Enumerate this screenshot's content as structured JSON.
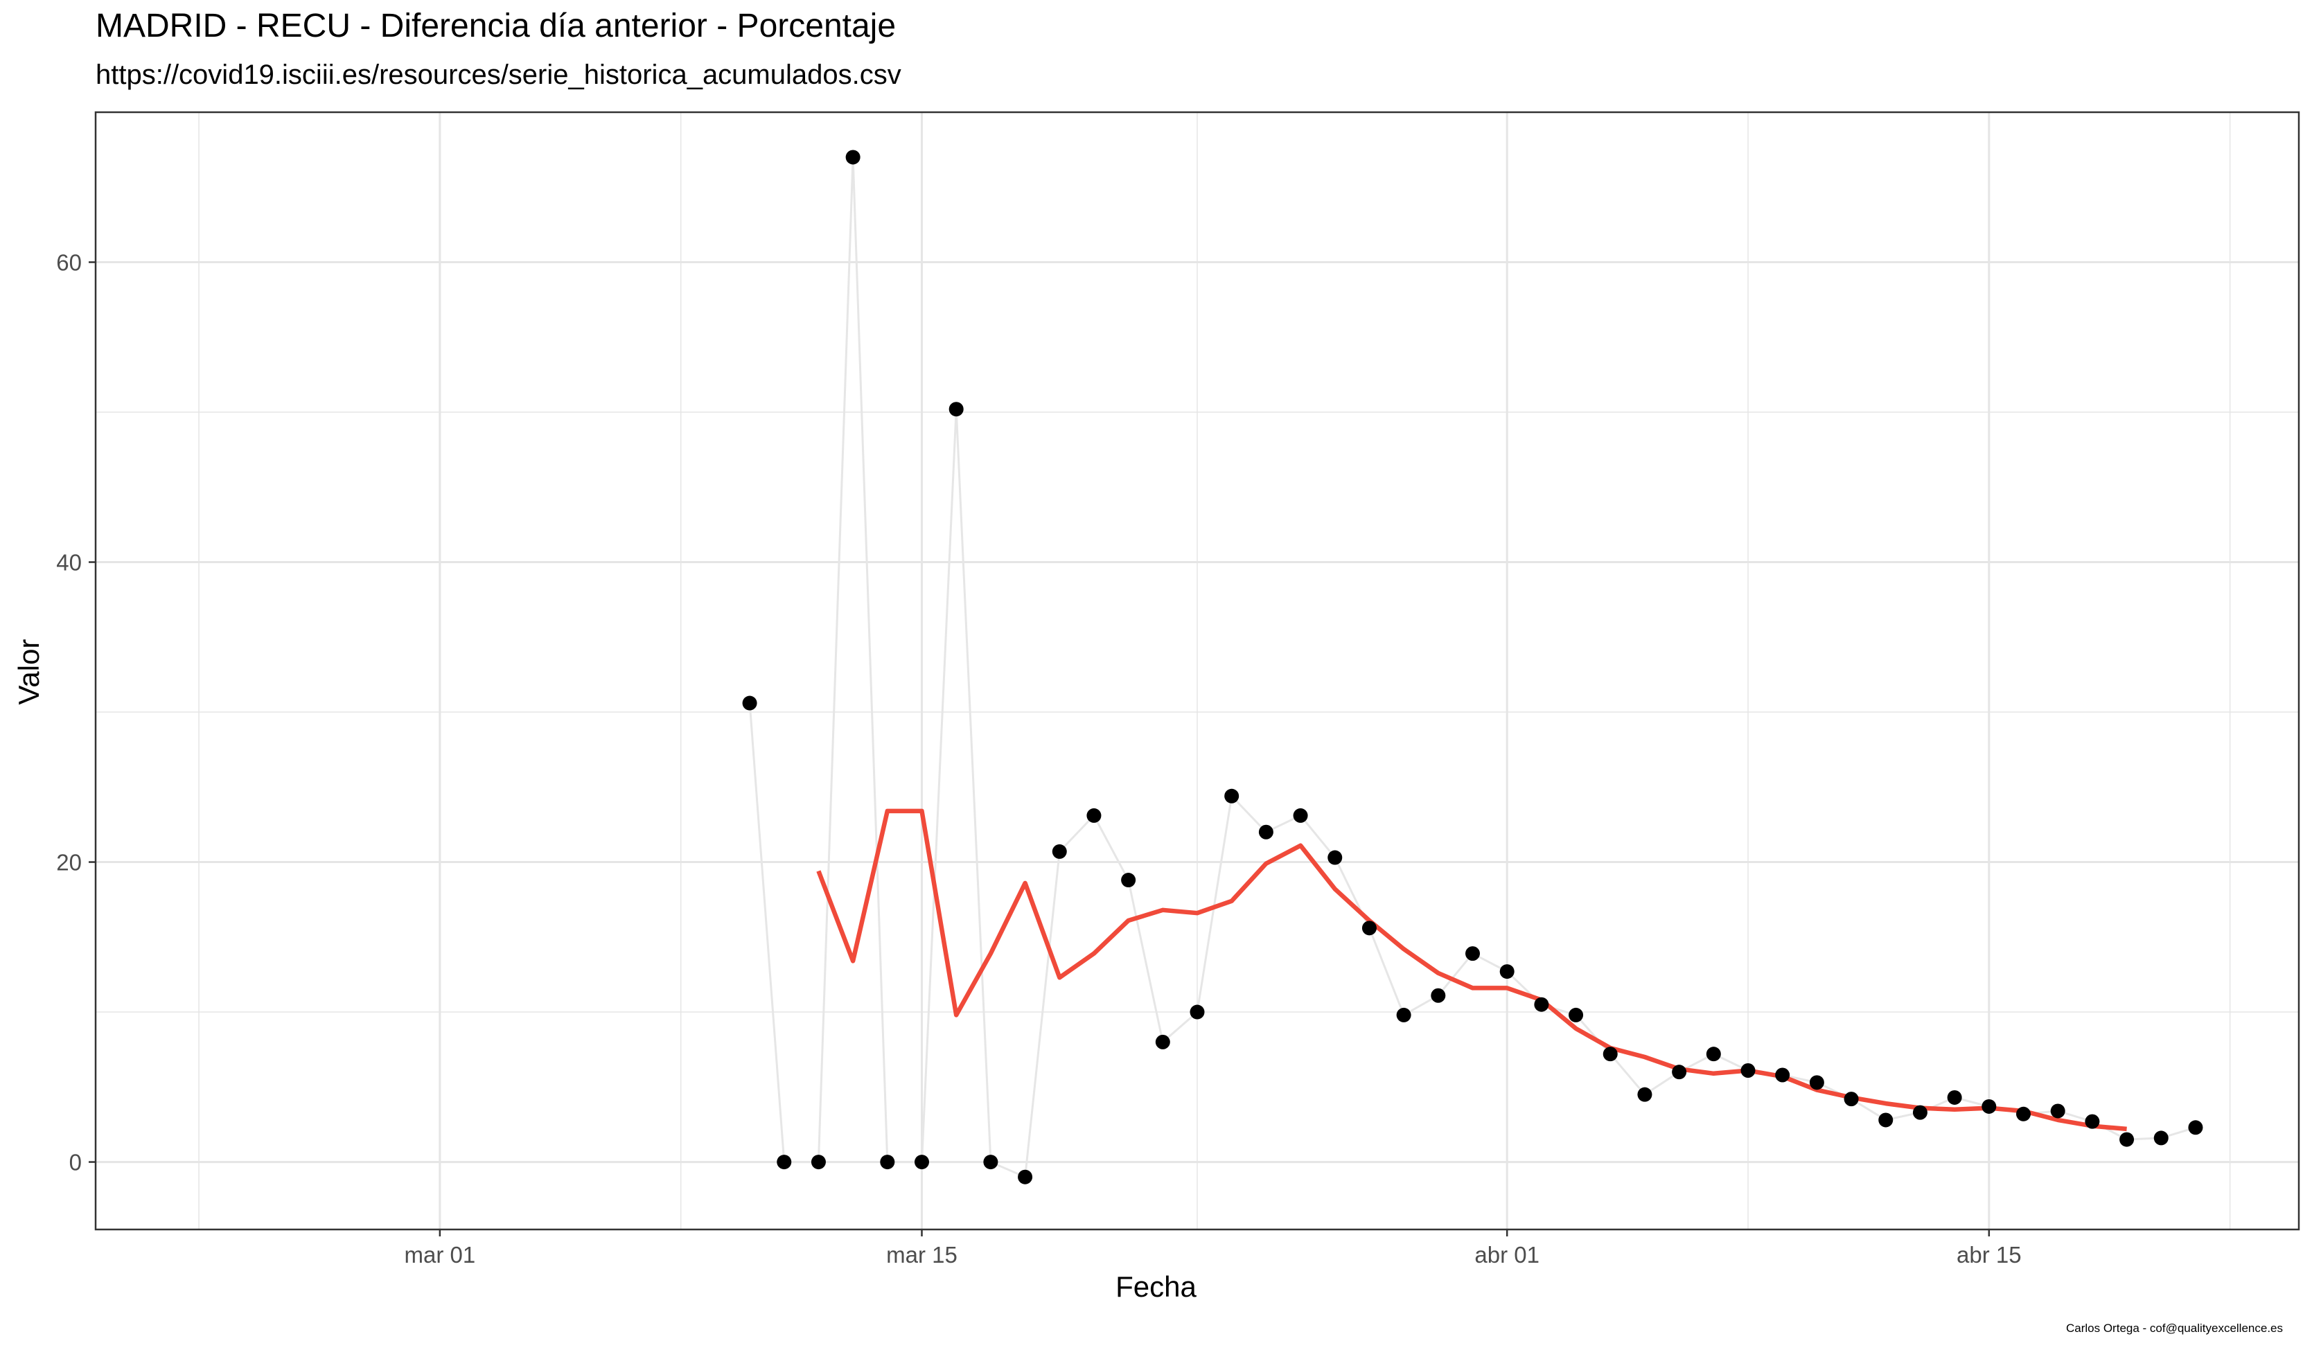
{
  "chart_data": {
    "type": "line",
    "title": "MADRID - RECU - Diferencia día anterior - Porcentaje",
    "subtitle": "https://covid19.isciii.es/resources/serie_historica_acumulados.csv",
    "caption": "Carlos Ortega - cof@qualityexcellence.es",
    "xlabel": "Fecha",
    "ylabel": "Valor",
    "xlim": [
      "2020-02-20",
      "2020-04-24"
    ],
    "ylim": [
      -4.5,
      70
    ],
    "x_ticks": [
      {
        "date": "2020-03-01",
        "label": "mar 01"
      },
      {
        "date": "2020-03-15",
        "label": "mar 15"
      },
      {
        "date": "2020-04-01",
        "label": "abr 01"
      },
      {
        "date": "2020-04-15",
        "label": "abr 15"
      }
    ],
    "x_minor_gridlines": [
      "2020-02-23",
      "2020-03-08",
      "2020-03-23",
      "2020-04-08",
      "2020-04-22"
    ],
    "y_ticks": [
      0,
      20,
      40,
      60
    ],
    "y_minor_gridlines": [
      10,
      30,
      50
    ],
    "grid": true,
    "legend": "none",
    "colors": {
      "points": "#000000",
      "raw_line": "#e6e6e6",
      "smooth_line": "#f04a3a",
      "grid": "#e5e5e5",
      "frame": "#333333"
    },
    "series": [
      {
        "style": "points-and-line",
        "x": [
          "2020-03-10",
          "2020-03-11",
          "2020-03-12",
          "2020-03-13",
          "2020-03-14",
          "2020-03-15",
          "2020-03-16",
          "2020-03-17",
          "2020-03-18",
          "2020-03-19",
          "2020-03-20",
          "2020-03-21",
          "2020-03-22",
          "2020-03-23",
          "2020-03-24",
          "2020-03-25",
          "2020-03-26",
          "2020-03-27",
          "2020-03-28",
          "2020-03-29",
          "2020-03-30",
          "2020-03-31",
          "2020-04-01",
          "2020-04-02",
          "2020-04-03",
          "2020-04-04",
          "2020-04-05",
          "2020-04-06",
          "2020-04-07",
          "2020-04-08",
          "2020-04-09",
          "2020-04-10",
          "2020-04-11",
          "2020-04-12",
          "2020-04-13",
          "2020-04-14",
          "2020-04-15",
          "2020-04-16",
          "2020-04-17",
          "2020-04-18",
          "2020-04-19",
          "2020-04-20",
          "2020-04-21"
        ],
        "values": [
          30.6,
          0,
          0,
          67,
          0,
          0,
          50.2,
          0,
          -1,
          20.7,
          23.1,
          18.8,
          8,
          10,
          24.4,
          22,
          23.1,
          20.3,
          15.6,
          9.8,
          11.1,
          13.9,
          12.7,
          10.5,
          9.8,
          7.2,
          4.5,
          6,
          7.2,
          6.1,
          5.8,
          5.3,
          4.2,
          2.8,
          3.3,
          4.3,
          3.7,
          3.2,
          3.4,
          2.7,
          1.5,
          1.6,
          2.3
        ]
      },
      {
        "style": "line",
        "x": [
          "2020-03-12",
          "2020-03-13",
          "2020-03-14",
          "2020-03-15",
          "2020-03-16",
          "2020-03-17",
          "2020-03-18",
          "2020-03-19",
          "2020-03-20",
          "2020-03-21",
          "2020-03-22",
          "2020-03-23",
          "2020-03-24",
          "2020-03-25",
          "2020-03-26",
          "2020-03-27",
          "2020-03-28",
          "2020-03-29",
          "2020-03-30",
          "2020-03-31",
          "2020-04-01",
          "2020-04-02",
          "2020-04-03",
          "2020-04-04",
          "2020-04-05",
          "2020-04-06",
          "2020-04-07",
          "2020-04-08",
          "2020-04-09",
          "2020-04-10",
          "2020-04-11",
          "2020-04-12",
          "2020-04-13",
          "2020-04-14",
          "2020-04-15",
          "2020-04-16",
          "2020-04-17",
          "2020-04-18",
          "2020-04-19"
        ],
        "values": [
          19.4,
          13.4,
          23.4,
          23.4,
          9.8,
          13.9,
          18.6,
          12.3,
          13.9,
          16.1,
          16.8,
          16.6,
          17.4,
          19.9,
          21.1,
          18.2,
          16.1,
          14.2,
          12.6,
          11.6,
          11.6,
          10.8,
          8.9,
          7.6,
          7.0,
          6.2,
          5.9,
          6.1,
          5.7,
          4.8,
          4.3,
          3.9,
          3.6,
          3.5,
          3.6,
          3.4,
          2.8,
          2.4,
          2.2
        ]
      }
    ]
  }
}
